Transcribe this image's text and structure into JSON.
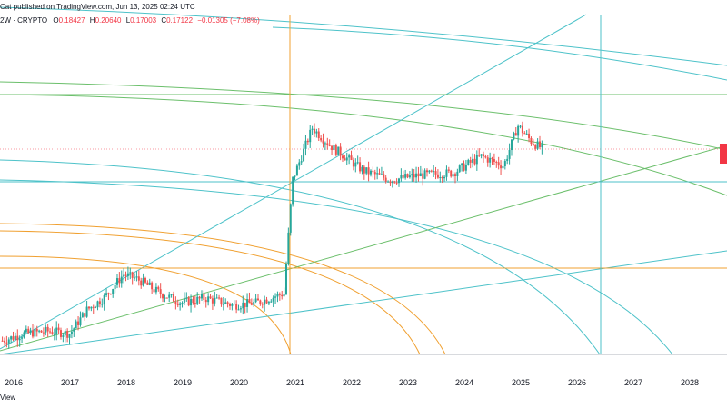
{
  "header": {
    "published": "Cat published on TradingView.com, Jun 13, 2025 02:24 UTC"
  },
  "ohlc": {
    "symbol": "2W · CRYPTO",
    "open_label": "O",
    "open": "0.18427",
    "high_label": "H",
    "high": "0.20640",
    "low_label": "L",
    "low": "0.17003",
    "close_label": "C",
    "close": "0.17122",
    "change": "−0.01305 (−7.08%)"
  },
  "footer": {
    "brand": "View"
  },
  "colors": {
    "up": "#26a69a",
    "down": "#ef5350",
    "teal": "#4dc2c9",
    "green": "#6bbf6b",
    "orange": "#f0a030",
    "tag": "#f23645"
  },
  "chart_data": {
    "type": "candlestick",
    "interval": "2W",
    "x_tick_labels": [
      "2016",
      "2017",
      "2018",
      "2019",
      "2020",
      "2021",
      "2022",
      "2023",
      "2024",
      "2025",
      "2026",
      "2027",
      "2028"
    ],
    "x_range": [
      2015.7,
      2028.5
    ],
    "y_range_normalized": [
      0,
      1
    ],
    "series_close_approx": [
      {
        "t": 2015.8,
        "v": 0.02
      },
      {
        "t": 2016.2,
        "v": 0.05
      },
      {
        "t": 2016.6,
        "v": 0.06
      },
      {
        "t": 2017.0,
        "v": 0.05
      },
      {
        "t": 2017.3,
        "v": 0.15
      },
      {
        "t": 2017.6,
        "v": 0.2
      },
      {
        "t": 2017.95,
        "v": 0.3
      },
      {
        "t": 2018.2,
        "v": 0.28
      },
      {
        "t": 2018.6,
        "v": 0.22
      },
      {
        "t": 2019.0,
        "v": 0.18
      },
      {
        "t": 2019.4,
        "v": 0.2
      },
      {
        "t": 2019.9,
        "v": 0.17
      },
      {
        "t": 2020.3,
        "v": 0.18
      },
      {
        "t": 2020.8,
        "v": 0.22
      },
      {
        "t": 2020.95,
        "v": 0.7
      },
      {
        "t": 2021.3,
        "v": 0.92
      },
      {
        "t": 2021.6,
        "v": 0.85
      },
      {
        "t": 2022.2,
        "v": 0.74
      },
      {
        "t": 2022.7,
        "v": 0.7
      },
      {
        "t": 2023.2,
        "v": 0.72
      },
      {
        "t": 2023.8,
        "v": 0.73
      },
      {
        "t": 2024.3,
        "v": 0.8
      },
      {
        "t": 2024.7,
        "v": 0.76
      },
      {
        "t": 2024.95,
        "v": 0.93
      },
      {
        "t": 2025.2,
        "v": 0.86
      },
      {
        "t": 2025.4,
        "v": 0.83
      }
    ]
  }
}
